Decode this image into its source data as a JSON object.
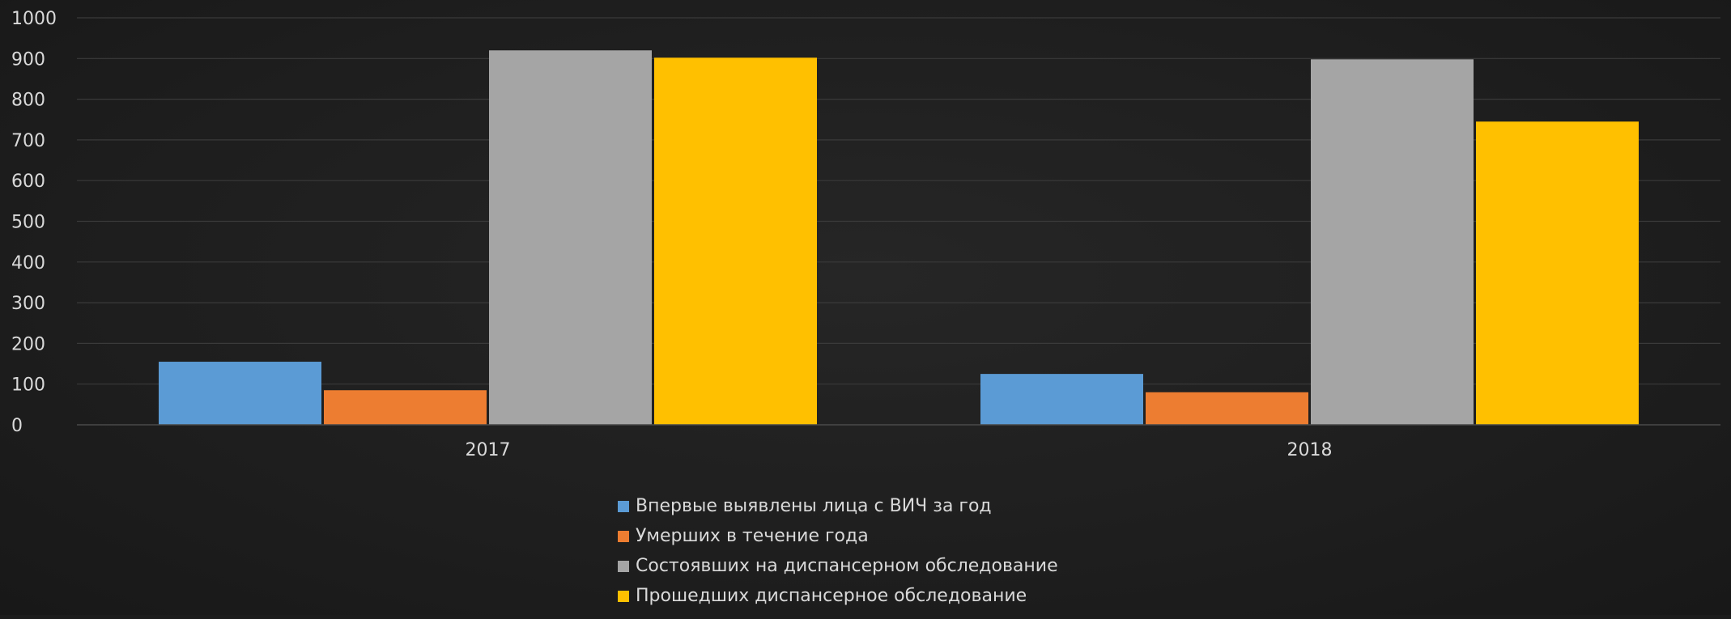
{
  "chart_data": {
    "type": "bar",
    "title": "",
    "xlabel": "",
    "ylabel": "",
    "categories": [
      "2017",
      "2018"
    ],
    "ylim": [
      0,
      1000
    ],
    "yticks": [
      0,
      100,
      200,
      300,
      400,
      500,
      600,
      700,
      800,
      900,
      1000
    ],
    "grid": true,
    "legend_position": "bottom",
    "series": [
      {
        "name": "Впервые выявлены лица с ВИЧ за год",
        "color": "#5b9bd5",
        "values": [
          155,
          125
        ]
      },
      {
        "name": "Умерших в течение года",
        "color": "#ed7d31",
        "values": [
          85,
          80
        ]
      },
      {
        "name": "Состоявших на диспансерном обследование",
        "color": "#a5a5a5",
        "values": [
          920,
          898
        ]
      },
      {
        "name": "Прошедших диспансерное обследование",
        "color": "#ffc000",
        "values": [
          902,
          745
        ]
      }
    ]
  }
}
